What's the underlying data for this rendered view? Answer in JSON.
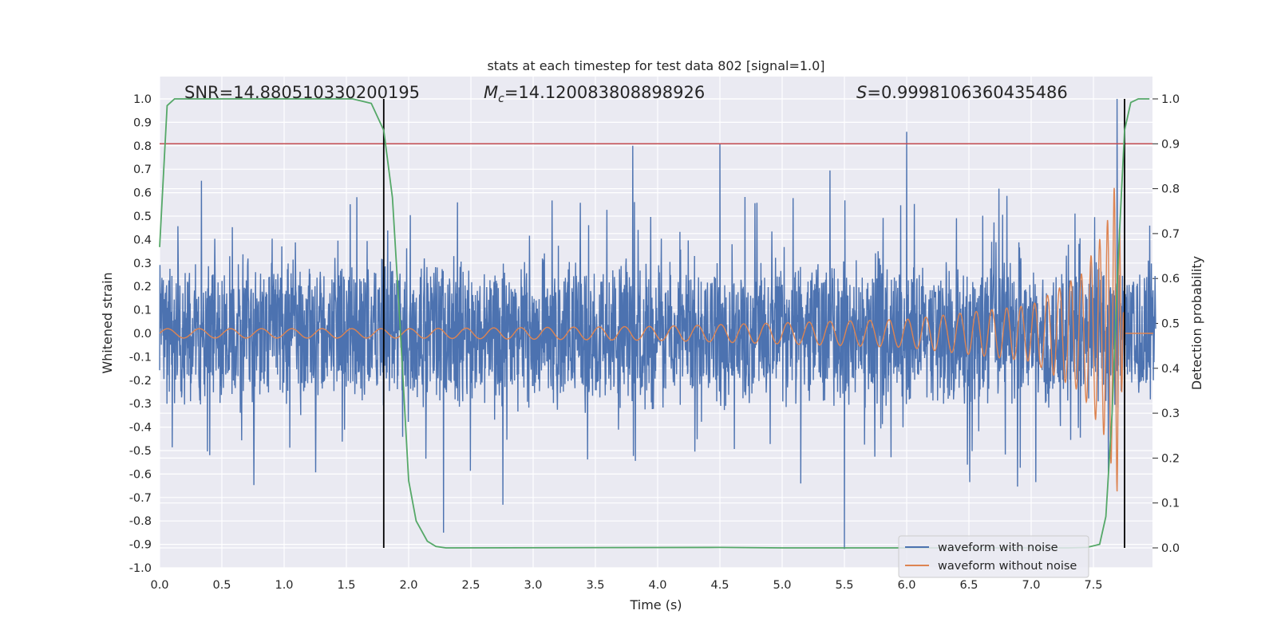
{
  "chart_data": {
    "type": "line",
    "title": "stats at each timestep for test data 802 [signal=1.0]",
    "xlabel": "Time (s)",
    "ylabel_left": "Whitened strain",
    "ylabel_right": "Detection probability",
    "xlim": [
      0.0,
      8.0
    ],
    "ylim_left": [
      -1.02,
      1.08
    ],
    "ylim_right": [
      -0.045,
      1.045
    ],
    "x_ticks": [
      "0.0",
      "0.5",
      "1.0",
      "1.5",
      "2.0",
      "2.5",
      "3.0",
      "3.5",
      "4.0",
      "4.5",
      "5.0",
      "5.5",
      "6.0",
      "6.5",
      "7.0",
      "7.5"
    ],
    "y_ticks_left": [
      "1.0",
      "0.9",
      "0.8",
      "0.7",
      "0.6",
      "0.5",
      "0.4",
      "0.3",
      "0.2",
      "0.1",
      "0.0",
      "-0.1",
      "-0.2",
      "-0.3",
      "-0.4",
      "-0.5",
      "-0.6",
      "-0.7",
      "-0.8",
      "-0.9",
      "-1.0"
    ],
    "y_ticks_right": [
      "1.0",
      "0.9",
      "0.8",
      "0.7",
      "0.6",
      "0.5",
      "0.4",
      "0.3",
      "0.2",
      "0.1",
      "0.0"
    ],
    "grid": true,
    "legend_position": "lower-right",
    "annotations": {
      "snr": "SNR=14.880510330200195",
      "mc_symbol": "M",
      "mc_subscript": "c",
      "mc_value": "=14.120083808898926",
      "s_symbol": "S",
      "s_value": "=0.9998106360435486"
    },
    "series": [
      {
        "name": "waveform with noise",
        "color": "#4c72b0",
        "style": "dense noisy signal",
        "typical_envelope": [
          -0.35,
          0.35
        ],
        "spike_max": 1.0,
        "spike_min": -0.92
      },
      {
        "name": "waveform without noise",
        "color": "#dd8452",
        "style": "chirp",
        "x_end": 7.75,
        "amplitude_points": [
          [
            0.0,
            0.02
          ],
          [
            2.0,
            0.02
          ],
          [
            4.0,
            0.03
          ],
          [
            6.0,
            0.06
          ],
          [
            7.0,
            0.12
          ],
          [
            7.4,
            0.25
          ],
          [
            7.6,
            0.45
          ],
          [
            7.69,
            0.68
          ],
          [
            7.75,
            0.0
          ]
        ]
      },
      {
        "name": "detection probability",
        "axis": "right",
        "color": "#55a868",
        "points": [
          [
            0.0,
            0.67
          ],
          [
            0.06,
            0.985
          ],
          [
            0.12,
            1.0
          ],
          [
            1.55,
            1.0
          ],
          [
            1.7,
            0.99
          ],
          [
            1.8,
            0.93
          ],
          [
            1.87,
            0.78
          ],
          [
            1.93,
            0.5
          ],
          [
            2.0,
            0.15
          ],
          [
            2.06,
            0.06
          ],
          [
            2.15,
            0.015
          ],
          [
            2.22,
            0.003
          ],
          [
            2.3,
            0.0
          ],
          [
            4.5,
            0.001
          ],
          [
            5.0,
            0.0
          ],
          [
            7.3,
            0.0
          ],
          [
            7.45,
            0.001
          ],
          [
            7.55,
            0.008
          ],
          [
            7.6,
            0.07
          ],
          [
            7.65,
            0.3
          ],
          [
            7.7,
            0.65
          ],
          [
            7.75,
            0.93
          ],
          [
            7.8,
            0.992
          ],
          [
            7.86,
            1.0
          ],
          [
            7.95,
            1.0
          ]
        ]
      }
    ],
    "threshold_line": {
      "axis": "right",
      "value": 0.9,
      "color": "#c44e52"
    },
    "vertical_markers": [
      {
        "x": 1.8,
        "y_range_right": [
          0.0,
          1.0
        ]
      },
      {
        "x": 7.75,
        "y_range_right": [
          0.0,
          1.0
        ]
      }
    ],
    "legend": [
      {
        "label": "waveform with noise",
        "color": "#4c72b0"
      },
      {
        "label": "waveform without noise",
        "color": "#dd8452"
      }
    ]
  }
}
